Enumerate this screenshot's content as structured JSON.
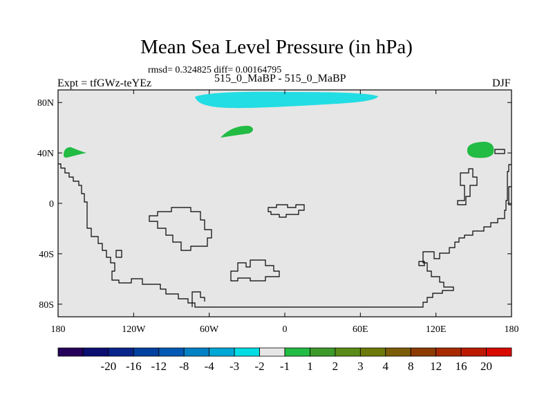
{
  "title": "Mean Sea Level Pressure (in hPa)",
  "stats_line": "rmsd= 0.324825 diff= 0.00164795",
  "experiment_label": "Expt = tfGWz-teYEz",
  "case_label": "515_0_MaBP - 515_0_MaBP",
  "season_label": "DJF",
  "map": {
    "background_color": "#e6e6e6",
    "lat_ticks": [
      {
        "value": 80,
        "label": "80N"
      },
      {
        "value": 40,
        "label": "40N"
      },
      {
        "value": 0,
        "label": "0"
      },
      {
        "value": -40,
        "label": "40S"
      },
      {
        "value": -80,
        "label": "80S"
      }
    ],
    "lon_ticks": [
      {
        "value": -180,
        "label": "180"
      },
      {
        "value": -120,
        "label": "120W"
      },
      {
        "value": -60,
        "label": "60W"
      },
      {
        "value": 0,
        "label": "0"
      },
      {
        "value": 60,
        "label": "60E"
      },
      {
        "value": 120,
        "label": "120E"
      },
      {
        "value": 180,
        "label": "180"
      }
    ]
  },
  "colorbar": {
    "colors": [
      "#24005a",
      "#0b0f72",
      "#08258a",
      "#0040a0",
      "#0059b4",
      "#0081c4",
      "#00a8d8",
      "#00dce4",
      "#e6e6e6",
      "#22bb44",
      "#3d9a2a",
      "#5a8a18",
      "#6d7a0a",
      "#7c5c06",
      "#8c3c00",
      "#a82a00",
      "#bc1a00",
      "#d80a00"
    ],
    "labels": [
      "-20",
      "-16",
      "-12",
      "-8",
      "-4",
      "-3",
      "-2",
      "-1",
      "1",
      "2",
      "3",
      "4",
      "8",
      "12",
      "16",
      "20"
    ]
  },
  "anomaly_colors": {
    "negative": "#22dde3",
    "positive": "#22bb44"
  }
}
